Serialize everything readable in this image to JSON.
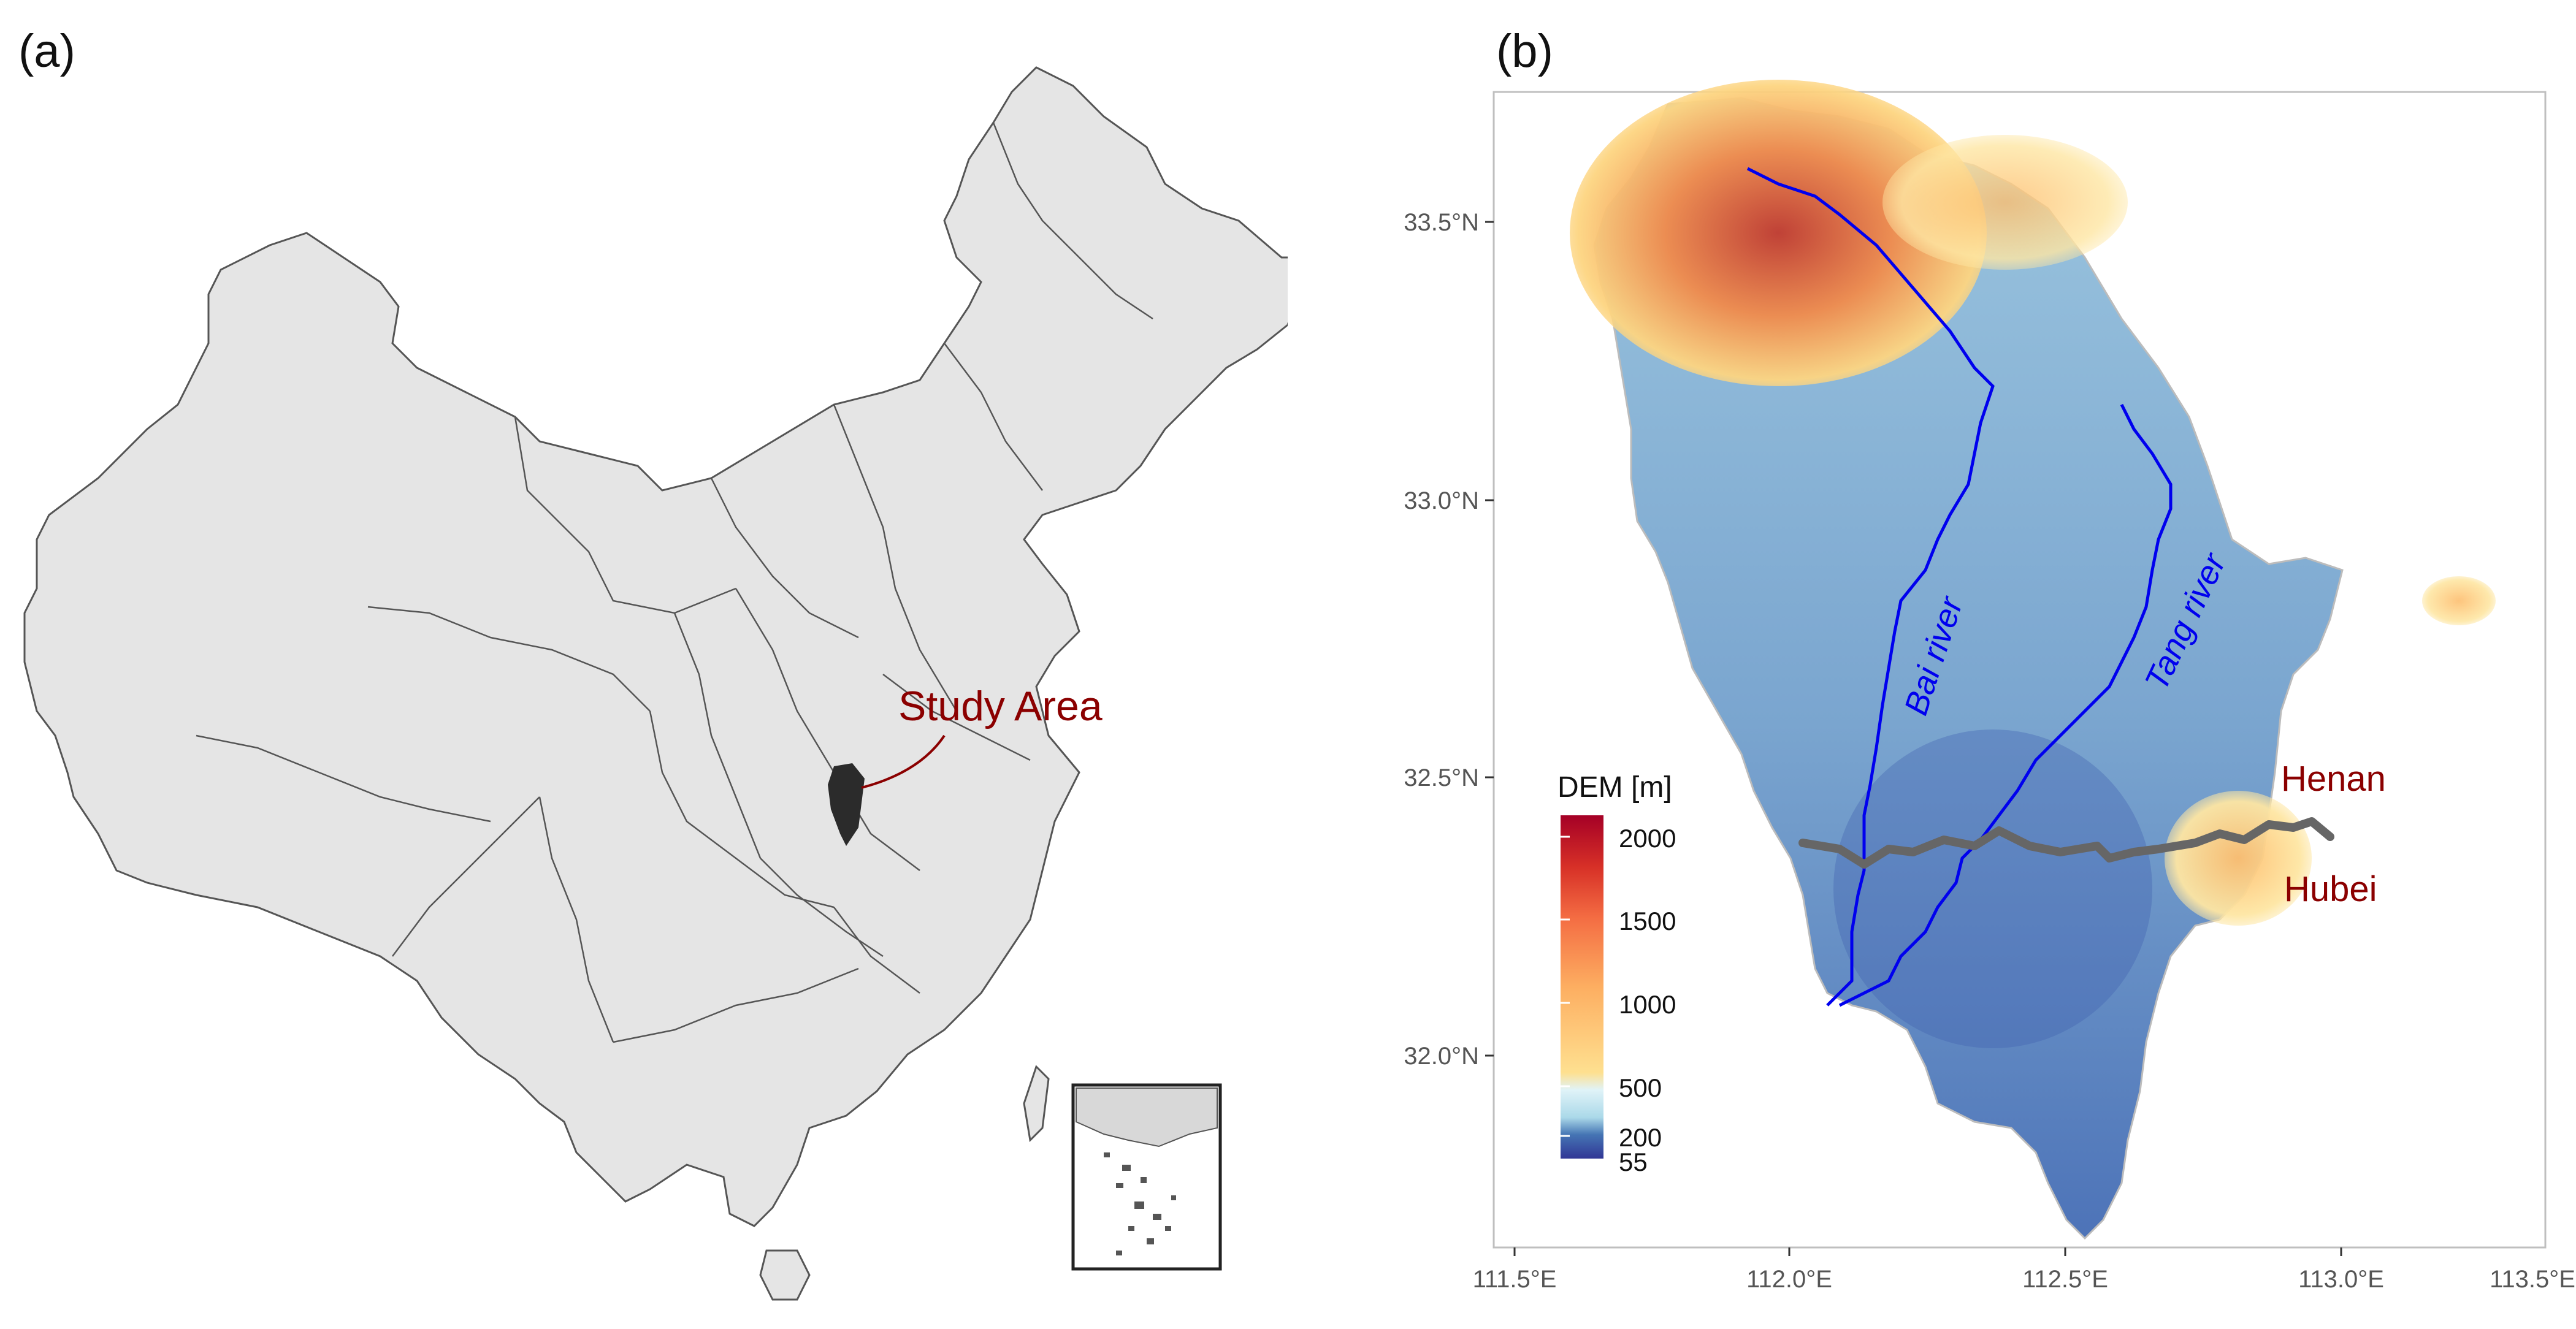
{
  "panel_a": {
    "label": "(a)",
    "study_area_label": "Study Area",
    "colors": {
      "land": "#e5e5e5",
      "border": "#555555",
      "study_area": "#2b2b2b",
      "label": "#8b0000"
    }
  },
  "panel_b": {
    "label": "(b)",
    "x_ticks": [
      "111.5°E",
      "112.0°E",
      "112.5°E",
      "113.0°E",
      "113.5°E"
    ],
    "y_ticks": [
      "33.5°N",
      "33.0°N",
      "32.5°N",
      "32.0°N"
    ],
    "rivers": [
      "Bai river",
      "Tang river"
    ],
    "provinces": [
      "Henan",
      "Hubei"
    ],
    "legend": {
      "title": "DEM [m]",
      "ticks": [
        "2000",
        "1500",
        "1000",
        "500",
        "200",
        "55"
      ],
      "colors": [
        "#a50026",
        "#d73027",
        "#f46d43",
        "#fdae61",
        "#fee090",
        "#e0f3f8",
        "#abd9e9",
        "#74add1",
        "#4575b4",
        "#313695"
      ]
    },
    "colors": {
      "river": "#0000ee",
      "boundary": "#666666",
      "province_label": "#8b0000"
    }
  }
}
